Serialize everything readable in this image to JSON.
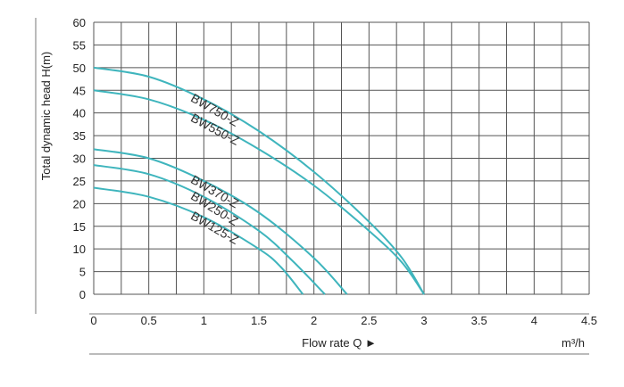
{
  "chart_data": {
    "type": "line",
    "xlabel": "Flow rate Q ►",
    "x_unit": "m³/h",
    "ylabel": "Total dynamic head H(m)",
    "xlim": [
      0,
      4.5
    ],
    "ylim": [
      0,
      60
    ],
    "x_ticks": [
      "0",
      "0.5",
      "1",
      "1.5",
      "2",
      "2.5",
      "3",
      "3.5",
      "4",
      "4.5"
    ],
    "y_ticks": [
      "0",
      "5",
      "10",
      "15",
      "20",
      "25",
      "30",
      "35",
      "40",
      "45",
      "50",
      "55",
      "60"
    ],
    "grid": true,
    "series": [
      {
        "name": "BW750-Z",
        "x": [
          0,
          0.5,
          1.0,
          1.5,
          2.0,
          2.5,
          2.8,
          3.0
        ],
        "y": [
          50,
          48,
          43,
          36,
          27,
          16,
          8,
          0
        ]
      },
      {
        "name": "BW550-Z",
        "x": [
          0,
          0.5,
          1.0,
          1.5,
          2.0,
          2.5,
          2.8,
          3.0
        ],
        "y": [
          45,
          43,
          38.5,
          32,
          24,
          14,
          7,
          0
        ]
      },
      {
        "name": "BW370-Z",
        "x": [
          0,
          0.5,
          1.0,
          1.5,
          2.0,
          2.3
        ],
        "y": [
          32,
          30,
          25,
          18,
          8,
          0
        ]
      },
      {
        "name": "BW250-Z",
        "x": [
          0,
          0.5,
          1.0,
          1.5,
          1.8,
          2.1
        ],
        "y": [
          28.5,
          26.5,
          21.5,
          14,
          7.5,
          0
        ]
      },
      {
        "name": "BW125-Z",
        "x": [
          0,
          0.5,
          1.0,
          1.5,
          1.7,
          1.9
        ],
        "y": [
          23.5,
          21.5,
          17,
          10,
          6,
          0
        ]
      }
    ],
    "colors": {
      "curve": "#3fb5bd",
      "grid": "#555555",
      "frame": "#555555"
    }
  }
}
